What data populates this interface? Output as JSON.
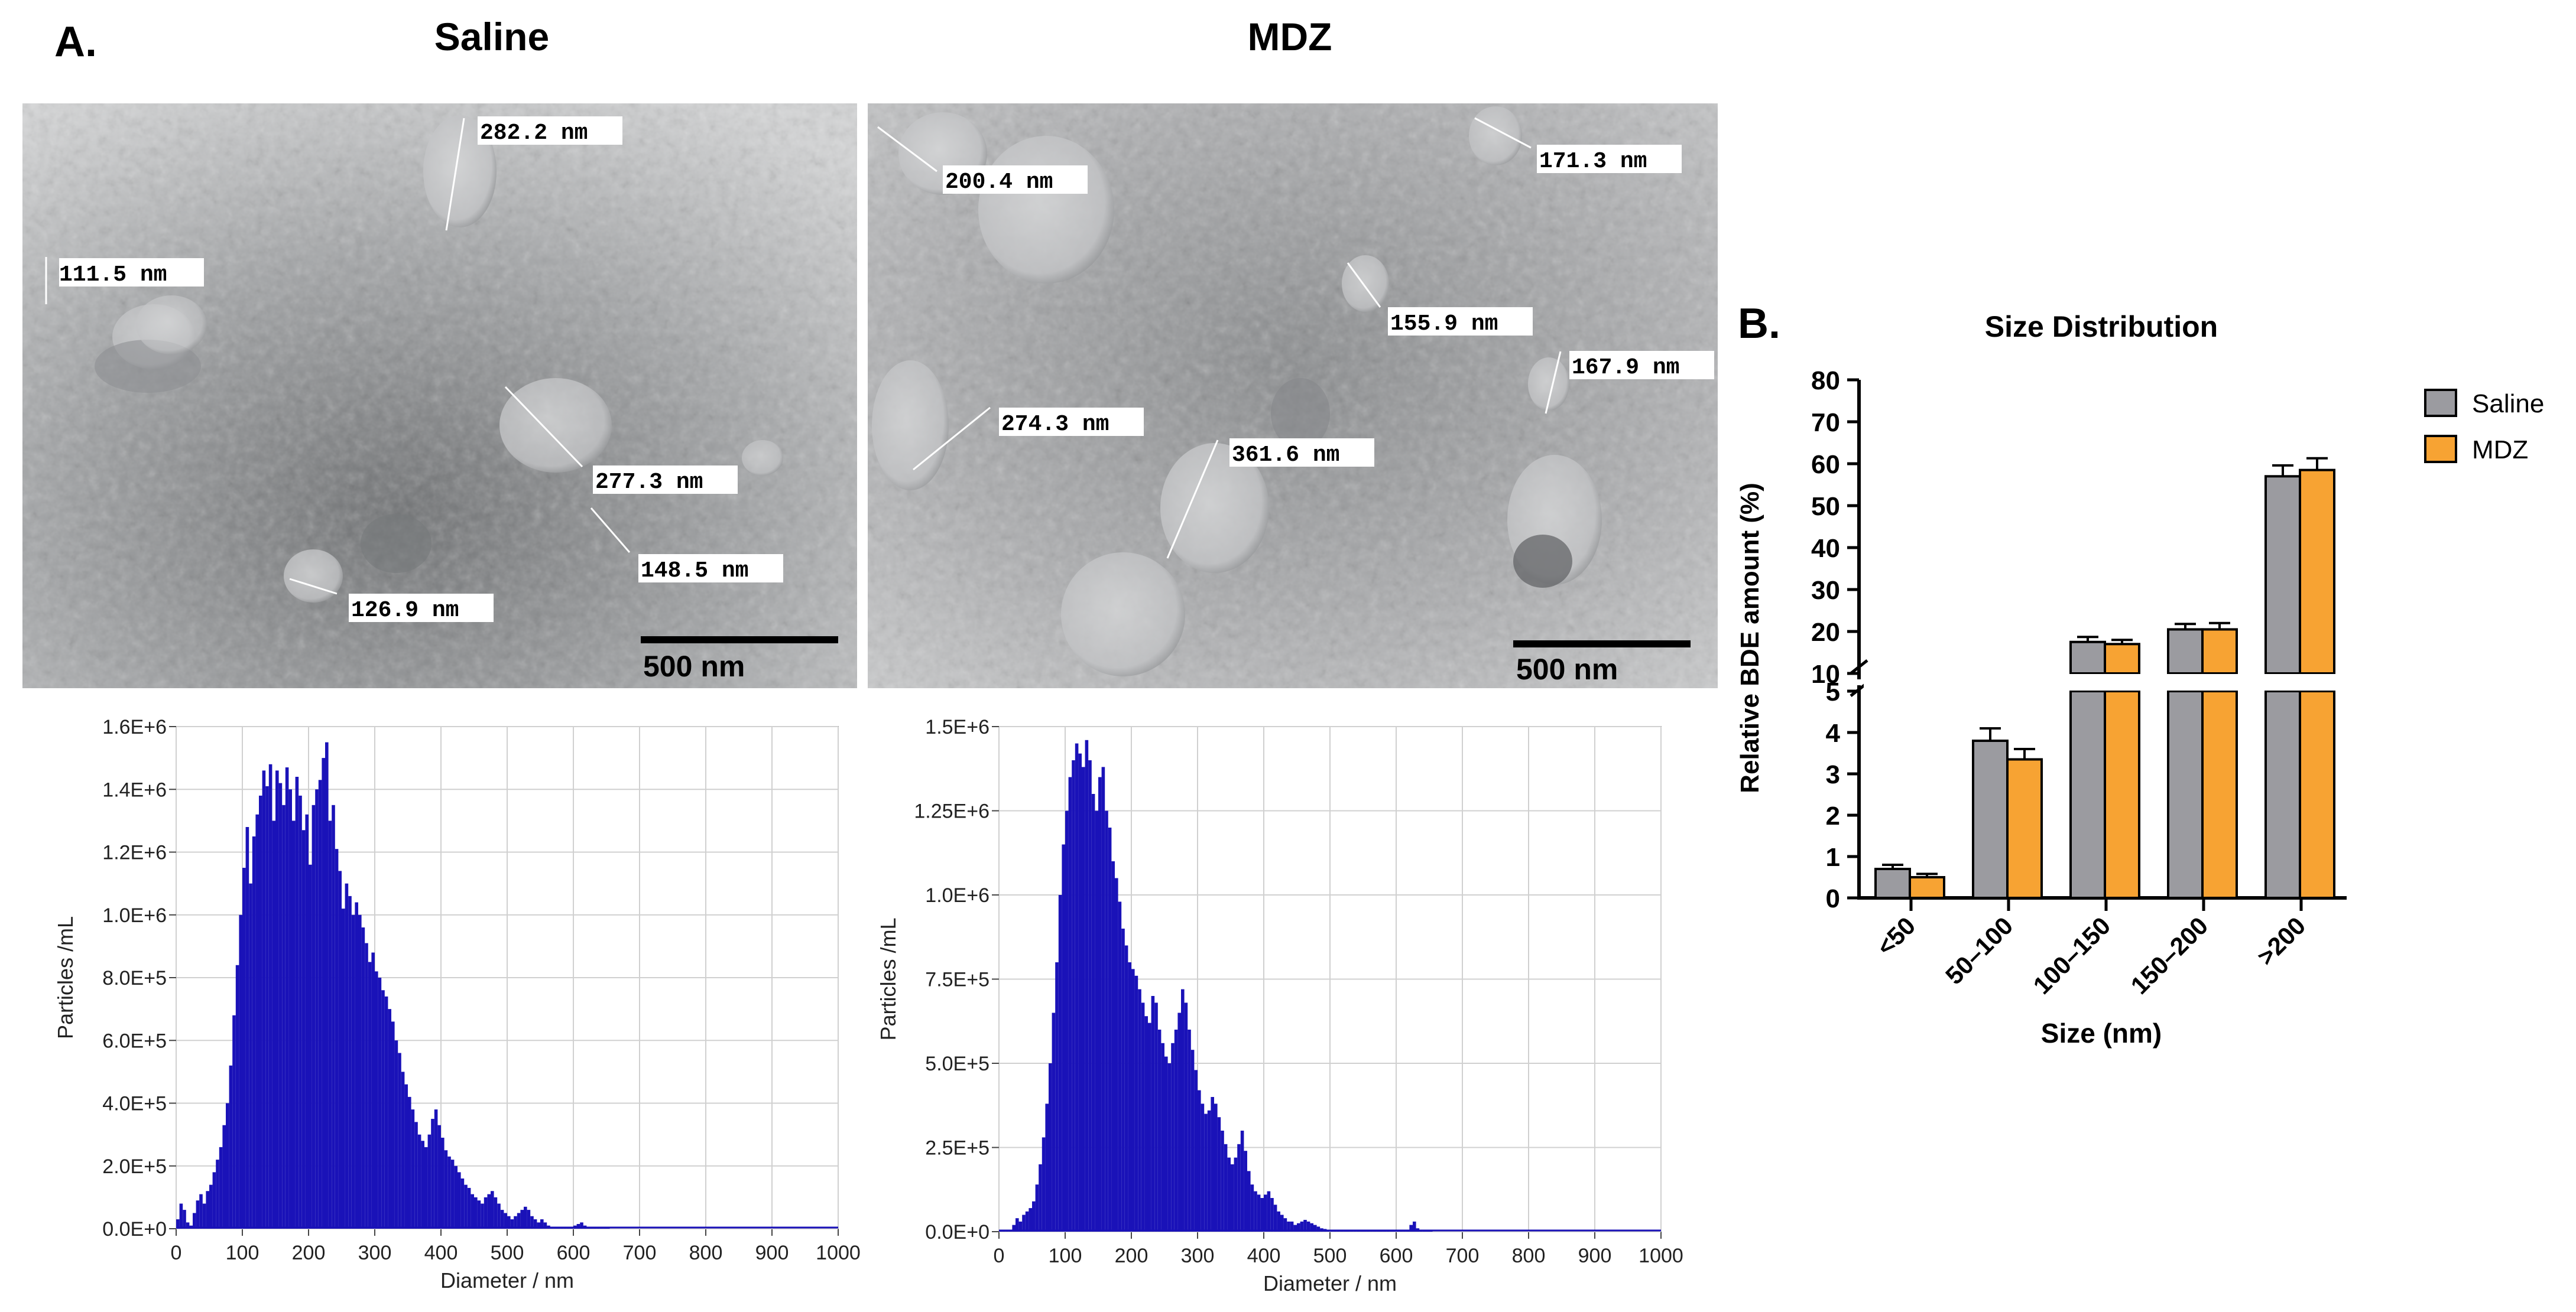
{
  "figure": {
    "panel_a_label": "A.",
    "panel_b_label": "B.",
    "saline_title": "Saline",
    "mdz_title": "MDZ"
  },
  "micrographs": {
    "saline": {
      "scale_bar_label": "500 nm",
      "measurements": [
        "282.2 nm",
        "111.5 nm",
        "277.3 nm",
        "148.5 nm",
        "126.9 nm"
      ]
    },
    "mdz": {
      "scale_bar_label": "500 nm",
      "measurements": [
        "200.4 nm",
        "171.3 nm",
        "155.9 nm",
        "167.9 nm",
        "274.3 nm",
        "361.6 nm"
      ]
    }
  },
  "chart_data": [
    {
      "type": "bar",
      "title": "",
      "xlabel": "Diameter / nm",
      "ylabel": "Particles /mL",
      "xlim": [
        0,
        1000
      ],
      "ylim": [
        0,
        1600000
      ],
      "xticks": [
        "0",
        "100",
        "200",
        "300",
        "400",
        "500",
        "600",
        "700",
        "800",
        "900",
        "1000"
      ],
      "yticks": [
        "0.0E+0",
        "2.0E+5",
        "4.0E+5",
        "6.0E+5",
        "8.0E+5",
        "1.0E+6",
        "1.2E+6",
        "1.4E+6",
        "1.6E+6"
      ],
      "x": [
        0,
        5,
        10,
        15,
        20,
        25,
        30,
        35,
        40,
        45,
        50,
        55,
        60,
        65,
        70,
        75,
        80,
        85,
        90,
        95,
        100,
        105,
        110,
        115,
        120,
        125,
        130,
        135,
        140,
        145,
        150,
        155,
        160,
        165,
        170,
        175,
        180,
        185,
        190,
        195,
        200,
        205,
        210,
        215,
        220,
        225,
        230,
        235,
        240,
        245,
        250,
        255,
        260,
        265,
        270,
        275,
        280,
        285,
        290,
        295,
        300,
        305,
        310,
        315,
        320,
        325,
        330,
        335,
        340,
        345,
        350,
        355,
        360,
        365,
        370,
        375,
        380,
        385,
        390,
        395,
        400,
        405,
        410,
        415,
        420,
        425,
        430,
        435,
        440,
        445,
        450,
        455,
        460,
        465,
        470,
        475,
        480,
        485,
        490,
        495,
        500,
        505,
        510,
        515,
        520,
        525,
        530,
        535,
        540,
        545,
        550,
        555,
        560,
        565,
        570,
        575,
        580,
        585,
        590,
        595,
        600,
        605,
        610,
        615,
        620,
        625,
        630,
        635,
        640,
        645,
        650
      ],
      "values": [
        30000,
        80000,
        60000,
        20000,
        10000,
        50000,
        90000,
        110000,
        80000,
        120000,
        140000,
        180000,
        220000,
        260000,
        330000,
        400000,
        520000,
        680000,
        840000,
        1000000,
        1150000,
        1280000,
        1100000,
        1250000,
        1320000,
        1380000,
        1460000,
        1410000,
        1480000,
        1300000,
        1460000,
        1420000,
        1350000,
        1470000,
        1400000,
        1300000,
        1440000,
        1380000,
        1270000,
        1320000,
        1160000,
        1350000,
        1400000,
        1430000,
        1500000,
        1550000,
        1300000,
        1350000,
        1210000,
        1140000,
        1020000,
        1100000,
        1060000,
        1000000,
        1040000,
        1000000,
        960000,
        910000,
        850000,
        880000,
        820000,
        800000,
        760000,
        740000,
        700000,
        660000,
        600000,
        560000,
        500000,
        460000,
        420000,
        380000,
        340000,
        300000,
        280000,
        260000,
        300000,
        350000,
        380000,
        330000,
        290000,
        250000,
        230000,
        220000,
        200000,
        180000,
        160000,
        140000,
        130000,
        110000,
        100000,
        90000,
        80000,
        100000,
        110000,
        120000,
        100000,
        80000,
        60000,
        50000,
        40000,
        30000,
        40000,
        50000,
        60000,
        70000,
        60000,
        40000,
        30000,
        20000,
        30000,
        20000,
        10000,
        5000,
        5000,
        3000,
        2000,
        2000,
        1000,
        1000,
        10000,
        15000,
        20000,
        10000,
        5000,
        2000,
        1000,
        1000,
        1000,
        1000,
        1000
      ]
    },
    {
      "type": "bar",
      "title": "",
      "xlabel": "Diameter / nm",
      "ylabel": "Particles /mL",
      "xlim": [
        0,
        1000
      ],
      "ylim": [
        0,
        1500000
      ],
      "xticks": [
        "0",
        "100",
        "200",
        "300",
        "400",
        "500",
        "600",
        "700",
        "800",
        "900",
        "1000"
      ],
      "yticks": [
        "0.0E+0",
        "2.5E+5",
        "5.0E+5",
        "7.5E+5",
        "1.0E+6",
        "1.25E+6",
        "1.5E+6"
      ],
      "x": [
        0,
        5,
        10,
        15,
        20,
        25,
        30,
        35,
        40,
        45,
        50,
        55,
        60,
        65,
        70,
        75,
        80,
        85,
        90,
        95,
        100,
        105,
        110,
        115,
        120,
        125,
        130,
        135,
        140,
        145,
        150,
        155,
        160,
        165,
        170,
        175,
        180,
        185,
        190,
        195,
        200,
        205,
        210,
        215,
        220,
        225,
        230,
        235,
        240,
        245,
        250,
        255,
        260,
        265,
        270,
        275,
        280,
        285,
        290,
        295,
        300,
        305,
        310,
        315,
        320,
        325,
        330,
        335,
        340,
        345,
        350,
        355,
        360,
        365,
        370,
        375,
        380,
        385,
        390,
        395,
        400,
        405,
        410,
        415,
        420,
        425,
        430,
        435,
        440,
        445,
        450,
        455,
        460,
        465,
        470,
        475,
        480,
        485,
        490,
        495,
        500,
        505,
        510,
        515,
        520,
        525,
        530,
        535,
        540,
        545,
        550,
        555,
        560,
        565,
        570,
        575,
        580,
        585,
        590,
        595,
        600,
        605,
        610,
        615,
        620,
        625,
        630,
        635,
        640,
        645,
        650
      ],
      "values": [
        5000,
        5000,
        5000,
        5000,
        20000,
        40000,
        30000,
        50000,
        60000,
        70000,
        90000,
        140000,
        200000,
        280000,
        380000,
        500000,
        650000,
        800000,
        1000000,
        1150000,
        1250000,
        1350000,
        1400000,
        1450000,
        1420000,
        1380000,
        1460000,
        1400000,
        1300000,
        1250000,
        1350000,
        1380000,
        1250000,
        1200000,
        1100000,
        1050000,
        980000,
        900000,
        850000,
        800000,
        780000,
        760000,
        720000,
        680000,
        640000,
        620000,
        700000,
        680000,
        600000,
        560000,
        520000,
        500000,
        560000,
        600000,
        650000,
        720000,
        680000,
        600000,
        540000,
        480000,
        420000,
        380000,
        350000,
        360000,
        400000,
        380000,
        340000,
        300000,
        260000,
        220000,
        200000,
        220000,
        260000,
        300000,
        240000,
        180000,
        140000,
        120000,
        110000,
        100000,
        110000,
        120000,
        100000,
        80000,
        60000,
        50000,
        40000,
        30000,
        30000,
        20000,
        25000,
        30000,
        35000,
        30000,
        25000,
        20000,
        15000,
        10000,
        8000,
        6000,
        5000,
        4000,
        3000,
        3000,
        4000,
        5000,
        5000,
        3000,
        2000,
        2000,
        1000,
        1000,
        1000,
        1000,
        1000,
        1000,
        1000,
        1000,
        1000,
        1000,
        1000,
        1000,
        1000,
        1000,
        20000,
        30000,
        10000,
        2000,
        1000,
        1000,
        1000
      ]
    },
    {
      "type": "bar",
      "title": "Size Distribution",
      "xlabel": "Size (nm)",
      "ylabel": "Relative BDE amount (%)",
      "categories": [
        "<50",
        "50–100",
        "100–150",
        "150–200",
        ">200"
      ],
      "series": [
        {
          "name": "Saline",
          "color": "#9b9ba0",
          "values": [
            0.7,
            3.8,
            17.5,
            20.5,
            57.0
          ],
          "errors": [
            0.1,
            0.3,
            1.2,
            1.3,
            2.6
          ]
        },
        {
          "name": "MDZ",
          "color": "#f7a333",
          "values": [
            0.5,
            3.35,
            17.0,
            20.5,
            58.5
          ],
          "errors": [
            0.08,
            0.25,
            1.0,
            1.5,
            2.8
          ]
        }
      ],
      "axis_break": {
        "lower_range": [
          0,
          5
        ],
        "upper_range": [
          10,
          80
        ]
      },
      "lower_yticks": [
        "0",
        "1",
        "2",
        "3",
        "4",
        "5"
      ],
      "upper_yticks": [
        "10",
        "20",
        "30",
        "40",
        "50",
        "60",
        "70",
        "80"
      ],
      "legend": "top-right"
    }
  ]
}
